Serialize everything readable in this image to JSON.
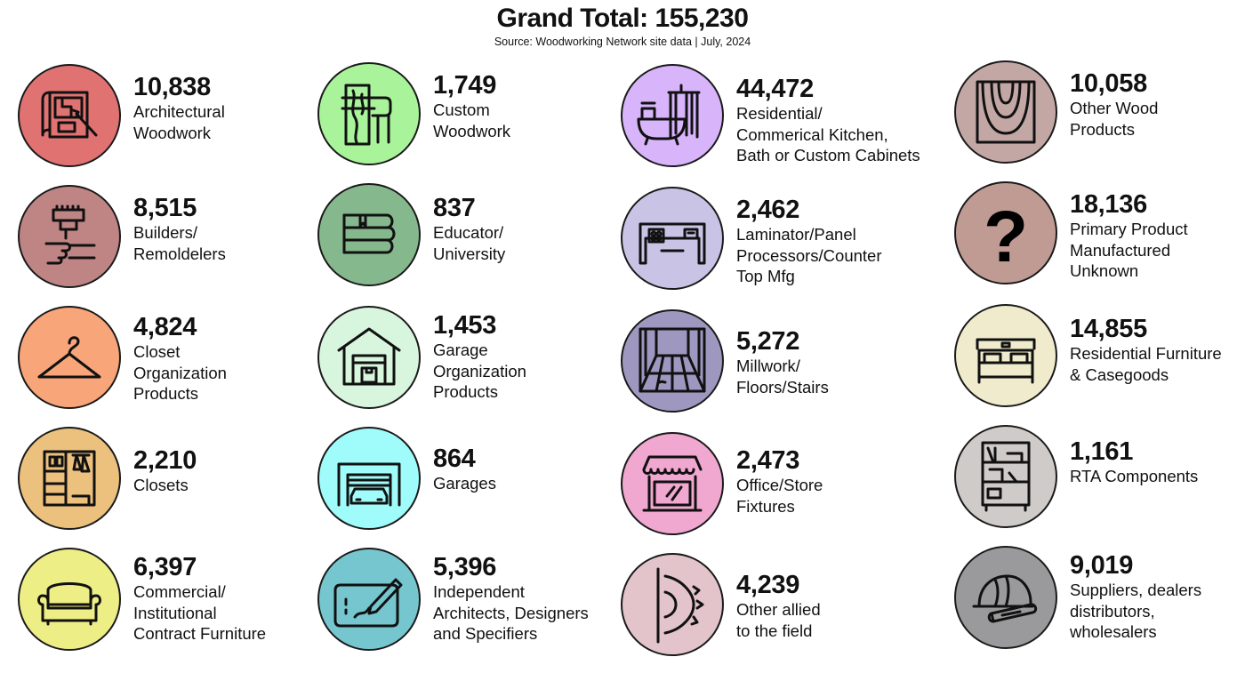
{
  "header": {
    "title": "Grand Total: 155,230",
    "source": "Source: Woodworking Network site data | July, 2024"
  },
  "categories": [
    {
      "count": "10,838",
      "lines": [
        "Architectural",
        "Woodwork"
      ],
      "color": "#e07272",
      "icon": "blueprint-icon"
    },
    {
      "count": "8,515",
      "lines": [
        "Builders/",
        "Remoldelers"
      ],
      "color": "#bf8484",
      "icon": "paint-brush-icon"
    },
    {
      "count": "4,824",
      "lines": [
        "Closet",
        "Organization",
        "Products"
      ],
      "color": "#f7a579",
      "icon": "hanger-icon"
    },
    {
      "count": "2,210",
      "lines": [
        "Closets"
      ],
      "color": "#ecc07d",
      "icon": "wardrobe-icon"
    },
    {
      "count": "6,397",
      "lines": [
        "Commercial/",
        "Institutional",
        "Contract Furniture"
      ],
      "color": "#eeee86",
      "icon": "armchair-icon"
    },
    {
      "count": "1,749",
      "lines": [
        "Custom",
        "Woodwork"
      ],
      "color": "#a9f49b",
      "icon": "wood-plank-hand-icon"
    },
    {
      "count": "837",
      "lines": [
        "Educator/",
        "University"
      ],
      "color": "#86b88d",
      "icon": "books-icon"
    },
    {
      "count": "1,453",
      "lines": [
        "Garage",
        "Organization",
        "Products"
      ],
      "color": "#d8f5de",
      "icon": "garage-box-icon"
    },
    {
      "count": "864",
      "lines": [
        "Garages"
      ],
      "color": "#9ffcfb",
      "icon": "garage-car-icon"
    },
    {
      "count": "5,396",
      "lines": [
        "Independent",
        "Architects, Designers",
        "and Specifiers"
      ],
      "color": "#76c6d0",
      "icon": "drawing-tablet-icon"
    },
    {
      "count": "44,472",
      "lines": [
        "Residential/",
        "Commerical Kitchen,",
        "Bath or Custom Cabinets"
      ],
      "color": "#d8b4fb",
      "icon": "bathtub-icon"
    },
    {
      "count": "2,462",
      "lines": [
        "Laminator/Panel",
        "Processors/Counter",
        "Top Mfg"
      ],
      "color": "#c9c4e6",
      "icon": "kitchen-counter-icon"
    },
    {
      "count": "5,272",
      "lines": [
        "Millwork/",
        "Floors/Stairs"
      ],
      "color": "#9e98c1",
      "icon": "floor-room-icon"
    },
    {
      "count": "2,473",
      "lines": [
        "Office/Store",
        "Fixtures"
      ],
      "color": "#f0a7d0",
      "icon": "storefront-icon"
    },
    {
      "count": "4,239",
      "lines": [
        "Other allied",
        "to the field"
      ],
      "color": "#e3c4cb",
      "icon": "saw-blade-icon"
    },
    {
      "count": "10,058",
      "lines": [
        "Other Wood",
        "Products"
      ],
      "color": "#c2a7a5",
      "icon": "wood-grain-icon"
    },
    {
      "count": "18,136",
      "lines": [
        "Primary Product",
        "Manufactured",
        "Unknown"
      ],
      "color": "#bf9b93",
      "icon": "question-mark-icon"
    },
    {
      "count": "14,855",
      "lines": [
        "Residential Furniture",
        "& Casegoods"
      ],
      "color": "#efebcc",
      "icon": "bed-icon"
    },
    {
      "count": "1,161",
      "lines": [
        "RTA Components"
      ],
      "color": "#cfcbc9",
      "icon": "bookshelf-icon"
    },
    {
      "count": "9,019",
      "lines": [
        "Suppliers, dealers",
        "distributors,",
        "wholesalers"
      ],
      "color": "#9a9a9c",
      "icon": "hardhat-blueprint-icon"
    }
  ]
}
